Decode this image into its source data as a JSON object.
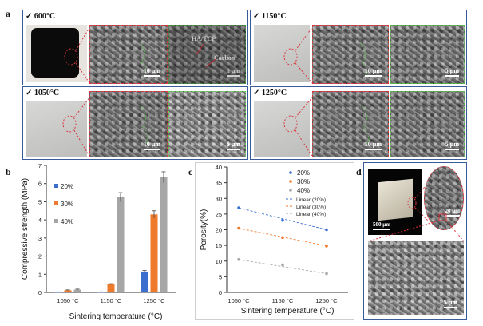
{
  "panel_letters": {
    "a": "a",
    "b": "b",
    "c": "c",
    "d": "d"
  },
  "panel_a": {
    "temps": [
      "600°C",
      "1150°C",
      "1050°C",
      "1250°C"
    ],
    "scale_bars": {
      "t600_1": "10 μm",
      "t600_2": "1 μm",
      "t1150_1": "10 μm",
      "t1150_2": "5 μm",
      "t1050_1": "10 μm",
      "t1050_2": "5 μm",
      "t1250_1": "10 μm",
      "t1250_2": "5 μm"
    },
    "annotations": {
      "hatcp": "HA/TCP",
      "carbon": "Carbon"
    }
  },
  "panel_d": {
    "scale_bars": {
      "photo": "500 μm",
      "zoom": "20 μm",
      "sem": "5 μm"
    }
  },
  "chart_data": [
    {
      "type": "bar",
      "categories": [
        "1050 °C",
        "1150 °C",
        "1250 °C"
      ],
      "series": [
        {
          "name": "20%",
          "values": [
            0.02,
            0.02,
            1.15
          ],
          "errors": [
            0.01,
            0.01,
            0.06
          ],
          "color": "#3a6fd0"
        },
        {
          "name": "30%",
          "values": [
            0.12,
            0.45,
            4.3
          ],
          "errors": [
            0.02,
            0.03,
            0.2
          ],
          "color": "#ef7a2c"
        },
        {
          "name": "40%",
          "values": [
            0.15,
            5.25,
            6.35
          ],
          "errors": [
            0.03,
            0.25,
            0.3
          ],
          "color": "#a6a6a6"
        }
      ],
      "xlabel": "Sintering temperature (°C)",
      "ylabel": "Compressive strength (MPa)",
      "ylim": [
        0,
        7
      ],
      "yticks": [
        "0",
        "1",
        "2",
        "3",
        "4",
        "5",
        "6",
        "7"
      ],
      "legend_position": "top-left",
      "grid": false
    },
    {
      "type": "scatter",
      "categories": [
        "1050 °C",
        "1150 °C",
        "1250 °C"
      ],
      "series": [
        {
          "name": "20%",
          "values": [
            27,
            23,
            20
          ],
          "color": "#3a6fd0"
        },
        {
          "name": "30%",
          "values": [
            20.5,
            17.5,
            14.8
          ],
          "color": "#ef7a2c"
        },
        {
          "name": "40%",
          "values": [
            10.5,
            8.8,
            6
          ],
          "color": "#a6a6a6"
        }
      ],
      "trendlines": [
        "Linear (20%)",
        "Linear (30%)",
        "Linear (40%)"
      ],
      "xlabel": "Sintering temperature (°C)",
      "ylabel": "Porosity(%)",
      "ylim": [
        0,
        40
      ],
      "yticks": [
        "0",
        "5",
        "10",
        "15",
        "20",
        "25",
        "30",
        "35",
        "40"
      ],
      "legend_position": "top-right",
      "grid": false
    }
  ]
}
